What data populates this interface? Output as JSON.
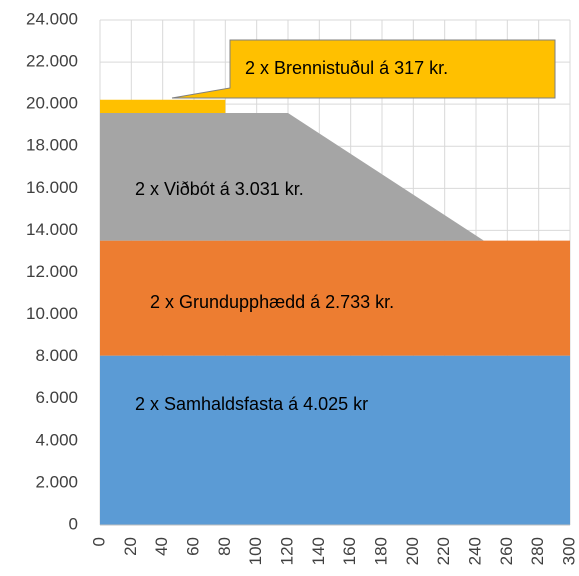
{
  "chart_data": {
    "type": "area",
    "stacked": true,
    "grid": true,
    "x": [
      0,
      80,
      120,
      245,
      300
    ],
    "series": [
      {
        "name": "2 x Samhaldsfasta á 4.025 kr",
        "color": "#5b9bd5",
        "values": [
          8050,
          8050,
          8050,
          8050,
          8050
        ]
      },
      {
        "name": "2 x Grundupphædd á 2.733 kr.",
        "color": "#ed7d31",
        "values": [
          5466,
          5466,
          5466,
          5466,
          5466
        ]
      },
      {
        "name": "2 x Viðbót á 3.031 kr.",
        "color": "#a5a5a5",
        "values": [
          6062,
          6062,
          6062,
          0,
          0
        ]
      },
      {
        "name": "2 x Brennistuðul á 317 kr.",
        "color": "#ffc000",
        "values": [
          634,
          634,
          null,
          null,
          null
        ]
      }
    ],
    "xlim": [
      0,
      300
    ],
    "xticks": [
      0,
      20,
      40,
      60,
      80,
      100,
      120,
      140,
      160,
      180,
      200,
      220,
      240,
      260,
      280,
      300
    ],
    "ylim": [
      0,
      24000
    ],
    "yticks": [
      0,
      {
        "value": 2000,
        "label": "2.000"
      },
      {
        "value": 4000,
        "label": "4.000"
      },
      {
        "value": 6000,
        "label": "6.000"
      },
      {
        "value": 8000,
        "label": "8.000"
      },
      {
        "value": 10000,
        "label": "10.000"
      },
      {
        "value": 12000,
        "label": "12.000"
      },
      {
        "value": 14000,
        "label": "14.000"
      },
      {
        "value": 16000,
        "label": "16.000"
      },
      {
        "value": 18000,
        "label": "18.000"
      },
      {
        "value": 20000,
        "label": "20.000"
      },
      {
        "value": 22000,
        "label": "22.000"
      },
      {
        "value": 24000,
        "label": "24.000"
      }
    ]
  }
}
